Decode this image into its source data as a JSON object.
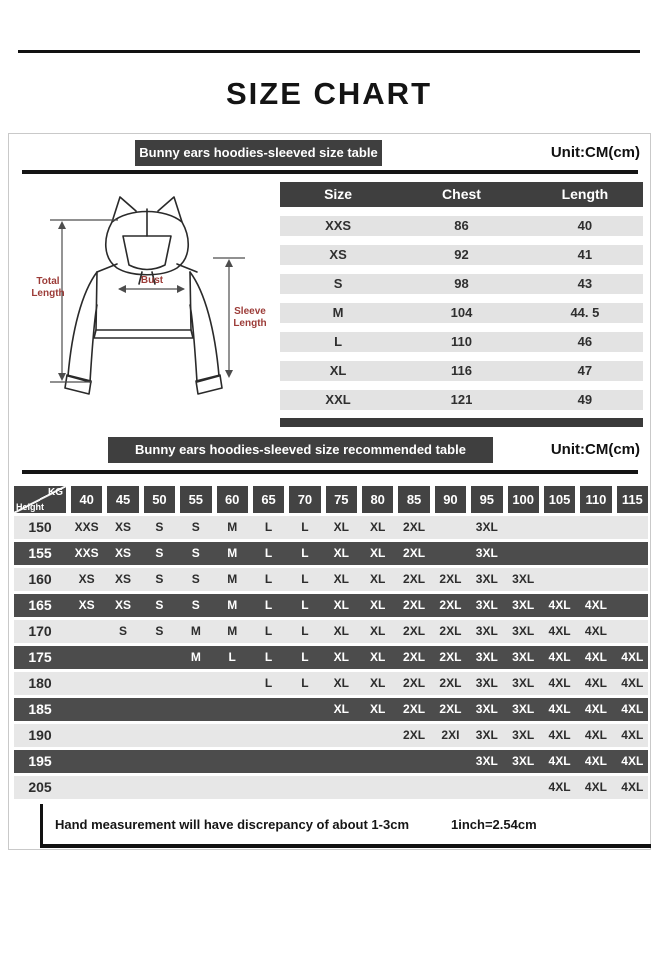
{
  "page": {
    "title": "SIZE CHART"
  },
  "colors": {
    "dark_bar": "#3f3f3f",
    "dark_header_cell": "#434343",
    "dark_row": "#4c4c4c",
    "light_row": "#e7e7e7",
    "size_row": "#e3e3e3",
    "diagram_label": "#9c3c38",
    "rule": "#111111"
  },
  "diagram": {
    "total_length": "Total Length",
    "bust": "Bust",
    "sleeve_length": "Sleeve Length"
  },
  "size_section": {
    "header": "Bunny ears hoodies-sleeved size  table",
    "unit": "Unit:CM(cm)",
    "columns": [
      "Size",
      "Chest",
      "Length"
    ],
    "rows": [
      {
        "size": "XXS",
        "chest": "86",
        "length": "40"
      },
      {
        "size": "XS",
        "chest": "92",
        "length": "41"
      },
      {
        "size": "S",
        "chest": "98",
        "length": "43"
      },
      {
        "size": "M",
        "chest": "104",
        "length": "44. 5"
      },
      {
        "size": "L",
        "chest": "110",
        "length": "46"
      },
      {
        "size": "XL",
        "chest": "116",
        "length": "47"
      },
      {
        "size": "XXL",
        "chest": "121",
        "length": "49"
      }
    ]
  },
  "rec_section": {
    "header": "Bunny ears hoodies-sleeved size recommended table",
    "unit": "Unit:CM(cm)",
    "corner_top": "KG",
    "corner_bottom": "Height",
    "weights": [
      "40",
      "45",
      "50",
      "55",
      "60",
      "65",
      "70",
      "75",
      "80",
      "85",
      "90",
      "95",
      "100",
      "105",
      "110",
      "115"
    ],
    "rows": [
      {
        "height": "150",
        "dark": false,
        "values": [
          "XXS",
          "XS",
          "S",
          "S",
          "M",
          "L",
          "L",
          "XL",
          "XL",
          "2XL",
          "",
          "3XL",
          "",
          "",
          "",
          ""
        ]
      },
      {
        "height": "155",
        "dark": true,
        "values": [
          "XXS",
          "XS",
          "S",
          "S",
          "M",
          "L",
          "L",
          "XL",
          "XL",
          "2XL",
          "",
          "3XL",
          "",
          "",
          "",
          ""
        ]
      },
      {
        "height": "160",
        "dark": false,
        "values": [
          "XS",
          "XS",
          "S",
          "S",
          "M",
          "L",
          "L",
          "XL",
          "XL",
          "2XL",
          "2XL",
          "3XL",
          "3XL",
          "",
          "",
          ""
        ]
      },
      {
        "height": "165",
        "dark": true,
        "values": [
          "XS",
          "XS",
          "S",
          "S",
          "M",
          "L",
          "L",
          "XL",
          "XL",
          "2XL",
          "2XL",
          "3XL",
          "3XL",
          "4XL",
          "4XL",
          ""
        ]
      },
      {
        "height": "170",
        "dark": false,
        "values": [
          "",
          "S",
          "S",
          "M",
          "M",
          "L",
          "L",
          "XL",
          "XL",
          "2XL",
          "2XL",
          "3XL",
          "3XL",
          "4XL",
          "4XL",
          ""
        ]
      },
      {
        "height": "175",
        "dark": true,
        "values": [
          "",
          "",
          "",
          "M",
          "L",
          "L",
          "L",
          "XL",
          "XL",
          "2XL",
          "2XL",
          "3XL",
          "3XL",
          "4XL",
          "4XL",
          "4XL"
        ]
      },
      {
        "height": "180",
        "dark": false,
        "values": [
          "",
          "",
          "",
          "",
          "",
          "L",
          "L",
          "XL",
          "XL",
          "2XL",
          "2XL",
          "3XL",
          "3XL",
          "4XL",
          "4XL",
          "4XL"
        ]
      },
      {
        "height": "185",
        "dark": true,
        "values": [
          "",
          "",
          "",
          "",
          "",
          "",
          "",
          "XL",
          "XL",
          "2XL",
          "2XL",
          "3XL",
          "3XL",
          "4XL",
          "4XL",
          "4XL"
        ]
      },
      {
        "height": "190",
        "dark": false,
        "values": [
          "",
          "",
          "",
          "",
          "",
          "",
          "",
          "",
          "",
          "2XL",
          "2XI",
          "3XL",
          "3XL",
          "4XL",
          "4XL",
          "4XL"
        ]
      },
      {
        "height": "195",
        "dark": true,
        "values": [
          "",
          "",
          "",
          "",
          "",
          "",
          "",
          "",
          "",
          "",
          "",
          "3XL",
          "3XL",
          "4XL",
          "4XL",
          "4XL"
        ]
      },
      {
        "height": "205",
        "dark": false,
        "values": [
          "",
          "",
          "",
          "",
          "",
          "",
          "",
          "",
          "",
          "",
          "",
          "",
          "",
          "4XL",
          "4XL",
          "4XL"
        ]
      }
    ]
  },
  "note": {
    "text": "Hand measurement will have discrepancy of about  1-3cm",
    "conversion": "1inch=2.54cm"
  }
}
